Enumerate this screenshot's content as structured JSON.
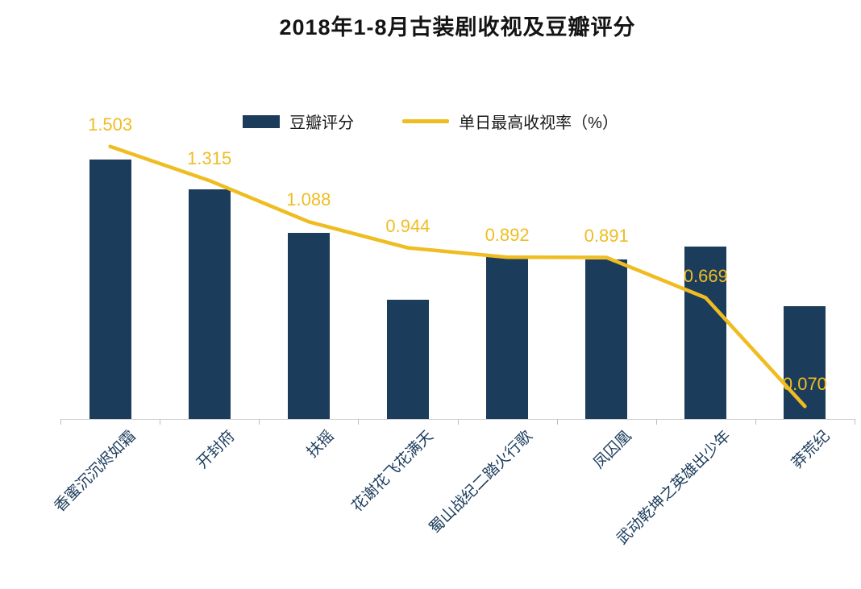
{
  "title": "2018年1-8月古装剧收视及豆瓣评分",
  "legend": {
    "bar": {
      "label": "豆瓣评分",
      "color": "#1C3C5C"
    },
    "line": {
      "label": "单日最高收视率（%）",
      "color": "#EFBD22"
    }
  },
  "chart_data": {
    "type": "bar+line",
    "title": "2018年1-8月古装剧收视及豆瓣评分",
    "xlabel": "",
    "ylabel": "",
    "grid": false,
    "legend_position": "top",
    "categories": [
      "香蜜沉沉烬如霜",
      "开封府",
      "扶摇",
      "花谢花飞花满天",
      "蜀山战纪二踏火行歌",
      "凤囚凰",
      "武动乾坤之英雄出少年",
      "莽荒纪"
    ],
    "series": [
      {
        "name": "豆瓣评分",
        "type": "bar",
        "color": "#1C3C5C",
        "axis_max": 8,
        "values": [
          7.8,
          6.9,
          5.6,
          3.6,
          4.9,
          4.8,
          5.2,
          3.4
        ]
      },
      {
        "name": "单日最高收视率（%）",
        "type": "line",
        "color": "#EFBD22",
        "axis_max": 1.6,
        "labels_shown": true,
        "values": [
          1.503,
          1.315,
          1.088,
          0.944,
          0.892,
          0.891,
          0.669,
          0.07
        ]
      }
    ]
  }
}
